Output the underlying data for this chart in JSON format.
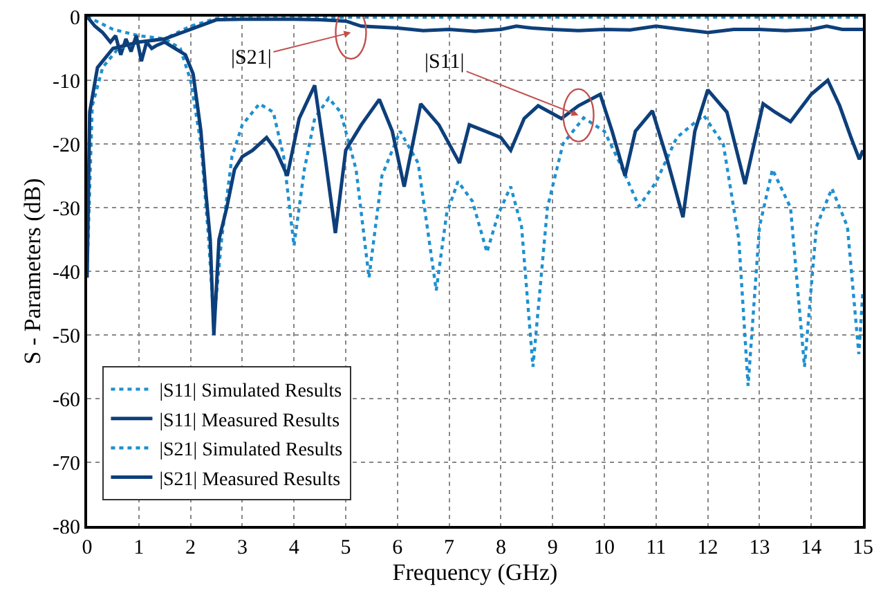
{
  "chart_data": {
    "type": "line",
    "xlabel": "Frequency (GHz)",
    "ylabel": "S - Parameters (dB)",
    "xlim": [
      0,
      15
    ],
    "xticks": [
      0,
      1,
      2,
      3,
      4,
      5,
      6,
      7,
      8,
      9,
      10,
      11,
      12,
      13,
      14,
      15
    ],
    "ylim": [
      -80,
      0
    ],
    "yticks": [
      -80,
      -70,
      -60,
      -50,
      -40,
      -30,
      -20,
      -10,
      0
    ],
    "grid": true,
    "legend": "bottom left",
    "marker": "none",
    "annotations": [
      {
        "text": "|S21|",
        "x": 5.1,
        "y": -2.5
      },
      {
        "text": "|S11|",
        "x": 9.5,
        "y": -15.5
      }
    ],
    "series": [
      {
        "name": "|S11| Simulated Results",
        "color": "#1e90d0",
        "line_style": "dotted",
        "x": [
          0,
          0.5,
          1,
          1.5,
          1.8,
          2,
          2.2,
          2.35,
          2.45,
          2.6,
          2.8,
          3,
          3.33,
          3.6,
          3.8,
          4,
          4.2,
          4.4,
          4.67,
          4.9,
          5.2,
          5.45,
          5.7,
          6.05,
          6.4,
          6.75,
          6.95,
          7.17,
          7.45,
          7.73,
          7.95,
          8.19,
          8.4,
          8.62,
          8.9,
          9.2,
          9.6,
          10,
          10.3,
          10.67,
          11,
          11.4,
          11.92,
          12.3,
          12.6,
          12.78,
          13,
          13.25,
          13.6,
          13.87,
          14.1,
          14.4,
          14.7,
          14.92,
          15
        ],
        "values": [
          0,
          -2,
          -3,
          -3.5,
          -5,
          -10,
          -20,
          -35,
          -48,
          -35,
          -22,
          -17,
          -13.7,
          -15,
          -22,
          -36,
          -24,
          -16,
          -12.8,
          -15,
          -24,
          -41,
          -25,
          -18,
          -23,
          -43,
          -31,
          -25.9,
          -29,
          -37,
          -31,
          -26.7,
          -33,
          -55,
          -30,
          -20,
          -15.9,
          -18,
          -23,
          -29.8,
          -26,
          -19,
          -15.5,
          -20,
          -35,
          -58,
          -33,
          -24,
          -30,
          -55,
          -33,
          -27,
          -33,
          -53,
          -43
        ]
      },
      {
        "name": "|S11| Measured Results",
        "color": "#0d3f7a",
        "line_style": "solid",
        "x": [
          0,
          0.15,
          0.3,
          0.45,
          0.55,
          0.65,
          0.75,
          0.85,
          0.95,
          1.05,
          1.15,
          1.25,
          1.35,
          1.5,
          1.7,
          1.9,
          2.05,
          2.2,
          2.3,
          2.38,
          2.45,
          2.55,
          2.7,
          2.85,
          3,
          3.2,
          3.47,
          3.65,
          3.87,
          4.1,
          4.4,
          4.6,
          4.8,
          5,
          5.3,
          5.65,
          5.9,
          6.13,
          6.45,
          6.8,
          7.2,
          7.39,
          7.7,
          8.0,
          8.19,
          8.45,
          8.72,
          9.17,
          9.5,
          9.92,
          10.15,
          10.4,
          10.6,
          10.93,
          11.2,
          11.52,
          11.75,
          12.0,
          12.37,
          12.72,
          13.07,
          13.3,
          13.6,
          14.0,
          14.32,
          14.55,
          14.77,
          14.93,
          15
        ],
        "values": [
          0,
          -1.5,
          -2.5,
          -4,
          -3,
          -6,
          -3.5,
          -5.5,
          -3,
          -7,
          -4,
          -5,
          -4.5,
          -4,
          -5,
          -6,
          -9,
          -18,
          -28,
          -35,
          -50,
          -35,
          -30,
          -24,
          -22,
          -21,
          -19,
          -21,
          -25,
          -16,
          -10.8,
          -22,
          -34,
          -21,
          -17,
          -13,
          -18,
          -26.7,
          -13.7,
          -17,
          -23,
          -17,
          -18,
          -19,
          -21,
          -16,
          -14,
          -16,
          -14,
          -12.2,
          -18,
          -25,
          -18,
          -14.8,
          -22,
          -31.5,
          -18,
          -11.5,
          -15,
          -26.3,
          -13.7,
          -15,
          -16.5,
          -12.2,
          -10,
          -14,
          -19,
          -22.4,
          -21
        ]
      },
      {
        "name": "|S21| Simulated Results",
        "color": "#1e90d0",
        "line_style": "dotted",
        "x": [
          0,
          0.1,
          0.3,
          0.6,
          1,
          1.5,
          2,
          2.5,
          3,
          6,
          9,
          12,
          15
        ],
        "values": [
          -40,
          -14,
          -8,
          -5,
          -4,
          -3.5,
          -1.5,
          -0.3,
          -0.1,
          -0.1,
          -0.1,
          -0.1,
          -0.1
        ]
      },
      {
        "name": "|S21| Measured Results",
        "color": "#0d3f7a",
        "line_style": "solid",
        "x": [
          0,
          0.05,
          0.2,
          0.5,
          1,
          1.5,
          2,
          2.5,
          3,
          4,
          4.5,
          5,
          5.3,
          6,
          6.5,
          7,
          7.5,
          8,
          8.3,
          8.6,
          9,
          9.5,
          10,
          10.5,
          11,
          11.5,
          12,
          12.5,
          13,
          13.5,
          14,
          14.3,
          14.6,
          15
        ],
        "values": [
          -41,
          -15,
          -8,
          -5,
          -4,
          -3.5,
          -2,
          -0.5,
          -0.4,
          -0.4,
          -0.5,
          -0.7,
          -1.5,
          -1.8,
          -2.2,
          -2,
          -2.3,
          -2,
          -1.5,
          -1.8,
          -2,
          -2.2,
          -2,
          -2.1,
          -1.5,
          -2,
          -2.5,
          -2,
          -2,
          -2.2,
          -2,
          -1.5,
          -2,
          -2
        ]
      }
    ]
  }
}
